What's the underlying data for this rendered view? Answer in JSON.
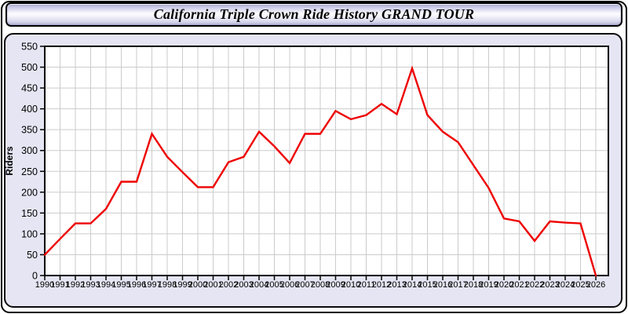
{
  "page": {
    "title": "California Triple Crown Ride History GRAND TOUR"
  },
  "colors": {
    "line": "#ee0000",
    "grid": "#cbcbcb",
    "plot_background": "#ffffff",
    "panel_background": "#e5e5f3",
    "axis": "#000000",
    "text": "#000000"
  },
  "chart_data": {
    "type": "line",
    "title": "California Triple Crown Ride History GRAND TOUR",
    "xlabel": "",
    "ylabel": "Riders",
    "legend": "none",
    "grid": true,
    "ylim": [
      0,
      550
    ],
    "ytick_step": 50,
    "categories": [
      1990,
      1991,
      1992,
      1993,
      1994,
      1995,
      1996,
      1997,
      1998,
      1999,
      2000,
      2001,
      2002,
      2003,
      2004,
      2005,
      2006,
      2007,
      2008,
      2009,
      2010,
      2011,
      2012,
      2013,
      2014,
      2015,
      2016,
      2017,
      2018,
      2019,
      2020,
      2021,
      2022,
      2023,
      2024,
      2025,
      2026
    ],
    "series": [
      {
        "name": "Riders",
        "color": "#ee0000",
        "values": [
          50,
          88,
          125,
          125,
          160,
          225,
          225,
          340,
          285,
          248,
          212,
          212,
          272,
          285,
          345,
          310,
          270,
          340,
          340,
          395,
          375,
          385,
          412,
          387,
          497,
          385,
          345,
          320,
          265,
          210,
          137,
          130,
          83,
          130,
          127,
          125,
          0
        ]
      }
    ]
  }
}
